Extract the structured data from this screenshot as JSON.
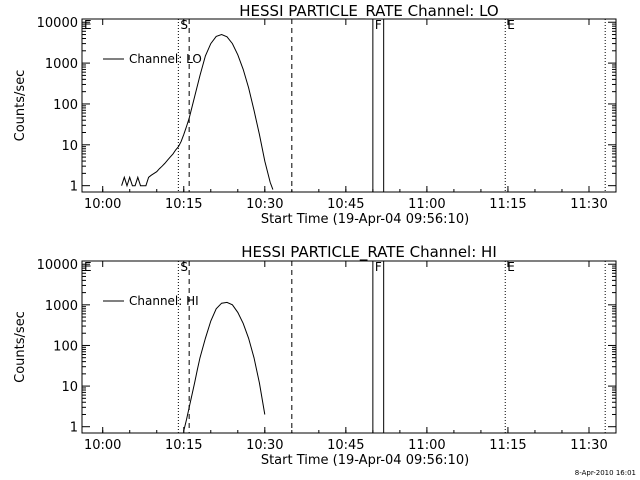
{
  "footer": {
    "timestamp": "8-Apr-2010 16:01"
  },
  "chart_data": [
    {
      "type": "line",
      "title": "HESSI PARTICLE_RATE Channel: LO",
      "xlabel": "Start Time (19-Apr-04 09:56:10)",
      "ylabel": "Counts/sec",
      "y_scale": "log",
      "ylim": [
        0.7,
        12000
      ],
      "xlim": [
        "09:56:10",
        "11:35:00"
      ],
      "x_ticks": [
        "10:00",
        "10:15",
        "10:30",
        "10:45",
        "11:00",
        "11:15",
        "11:30"
      ],
      "y_ticks": [
        "1",
        "10",
        "100",
        "1000",
        "10000"
      ],
      "legend": {
        "label": "Channel: LO",
        "position": "top-left"
      },
      "markers": [
        {
          "label": "E",
          "time": "09:56:10",
          "style": "dotted"
        },
        {
          "label": "S",
          "time": "10:14:00",
          "style": "dotted"
        },
        {
          "label": "",
          "time": "10:16:00",
          "style": "dashed"
        },
        {
          "label": "",
          "time": "10:35:00",
          "style": "dashed"
        },
        {
          "label": "F",
          "time": "10:50:00",
          "style": "solid"
        },
        {
          "label": "",
          "time": "10:52:00",
          "style": "solid"
        },
        {
          "label": "E",
          "time": "11:14:30",
          "style": "dotted"
        },
        {
          "label": "",
          "time": "11:33:00",
          "style": "dotted"
        }
      ],
      "series": [
        {
          "name": "Channel: LO",
          "x": [
            "10:03:30",
            "10:04:00",
            "10:04:30",
            "10:05:00",
            "10:05:30",
            "10:06:00",
            "10:06:30",
            "10:07:00",
            "10:07:30",
            "10:08:00",
            "10:08:30",
            "10:09:00",
            "10:09:30",
            "10:10:00",
            "10:10:30",
            "10:11:00",
            "10:11:30",
            "10:12:00",
            "10:12:30",
            "10:13:00",
            "10:13:30",
            "10:14:00",
            "10:14:30",
            "10:15:00",
            "10:15:30",
            "10:16:00",
            "10:17:00",
            "10:18:00",
            "10:19:00",
            "10:20:00",
            "10:21:00",
            "10:22:00",
            "10:23:00",
            "10:24:00",
            "10:25:00",
            "10:26:00",
            "10:27:00",
            "10:28:00",
            "10:29:00",
            "10:30:00",
            "10:31:00",
            "10:31:30"
          ],
          "y": [
            1,
            1.6,
            1,
            1.6,
            1,
            1,
            1.6,
            1,
            1,
            1,
            1.6,
            1.8,
            2,
            2.2,
            2.6,
            3,
            3.5,
            4.2,
            5,
            6,
            7.5,
            9,
            12,
            18,
            28,
            45,
            150,
            500,
            1500,
            3000,
            4500,
            5000,
            4400,
            3000,
            1600,
            700,
            250,
            70,
            18,
            4,
            1.2,
            0.8
          ]
        }
      ]
    },
    {
      "type": "line",
      "title": "HESSI PARTICLE_RATE Channel: HI",
      "xlabel": "Start Time (19-Apr-04 09:56:10)",
      "ylabel": "Counts/sec",
      "y_scale": "log",
      "ylim": [
        0.7,
        12000
      ],
      "xlim": [
        "09:56:10",
        "11:35:00"
      ],
      "x_ticks": [
        "10:00",
        "10:15",
        "10:30",
        "10:45",
        "11:00",
        "11:15",
        "11:30"
      ],
      "y_ticks": [
        "1",
        "10",
        "100",
        "1000",
        "10000"
      ],
      "legend": {
        "label": "Channel: HI",
        "position": "top-left"
      },
      "markers": [
        {
          "label": "E",
          "time": "09:56:10",
          "style": "dotted"
        },
        {
          "label": "S",
          "time": "10:14:00",
          "style": "dotted"
        },
        {
          "label": "",
          "time": "10:16:00",
          "style": "dashed"
        },
        {
          "label": "",
          "time": "10:35:00",
          "style": "dashed"
        },
        {
          "label": "F",
          "time": "10:50:00",
          "style": "solid"
        },
        {
          "label": "",
          "time": "10:52:00",
          "style": "solid"
        },
        {
          "label": "E",
          "time": "11:14:30",
          "style": "dotted"
        },
        {
          "label": "",
          "time": "11:33:00",
          "style": "dotted"
        }
      ],
      "series": [
        {
          "name": "Channel: HI",
          "x": [
            "10:15:00",
            "10:15:30",
            "10:16:00",
            "10:16:30",
            "10:17:00",
            "10:17:30",
            "10:18:00",
            "10:19:00",
            "10:20:00",
            "10:21:00",
            "10:22:00",
            "10:23:00",
            "10:24:00",
            "10:25:00",
            "10:26:00",
            "10:27:00",
            "10:28:00",
            "10:29:00",
            "10:30:00"
          ],
          "y": [
            0.8,
            1.5,
            3,
            6,
            12,
            25,
            50,
            150,
            400,
            800,
            1100,
            1150,
            1000,
            650,
            350,
            150,
            50,
            12,
            2
          ]
        }
      ]
    }
  ]
}
